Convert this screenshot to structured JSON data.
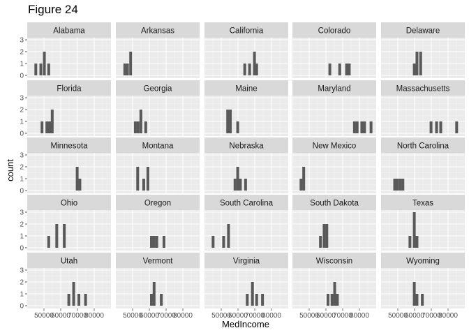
{
  "figure": {
    "title": "Figure 24"
  },
  "chart_data": {
    "type": "histogram",
    "xlabel": "MedIncome",
    "ylabel": "count",
    "xlim": [
      40000,
      90000
    ],
    "ylim": [
      0,
      3
    ],
    "x_ticks": [
      50000,
      60000,
      70000,
      80000
    ],
    "x_tick_labels": [
      "50000",
      "60000",
      "70000",
      "80000"
    ],
    "y_ticks": [
      0,
      1,
      2,
      3
    ],
    "y_tick_labels": [
      "0",
      "1",
      "2",
      "3"
    ],
    "grid": true,
    "bar_color": "#595959",
    "panel_bg": "#ebebeb",
    "strip_bg": "#d9d9d9",
    "bin_width": 1667,
    "panels": [
      {
        "name": "Alabama",
        "bins": [
          [
            44300,
            1
          ],
          [
            47300,
            1
          ],
          [
            49400,
            2
          ],
          [
            52000,
            1
          ]
        ]
      },
      {
        "name": "Arkansas",
        "bins": [
          [
            44500,
            1
          ],
          [
            46100,
            1
          ],
          [
            48000,
            2
          ]
        ]
      },
      {
        "name": "California",
        "bins": [
          [
            63200,
            1
          ],
          [
            66100,
            1
          ],
          [
            69000,
            2
          ],
          [
            70300,
            1
          ]
        ]
      },
      {
        "name": "Colorado",
        "bins": [
          [
            61500,
            1
          ],
          [
            67400,
            1
          ],
          [
            71500,
            1
          ],
          [
            73100,
            1
          ]
        ]
      },
      {
        "name": "Delaware",
        "bins": [
          [
            59000,
            1
          ],
          [
            60600,
            2
          ],
          [
            62800,
            2
          ]
        ]
      },
      {
        "name": "Florida",
        "bins": [
          [
            48000,
            1
          ],
          [
            50900,
            1
          ],
          [
            52500,
            1
          ],
          [
            54100,
            2
          ]
        ]
      },
      {
        "name": "Georgia",
        "bins": [
          [
            50800,
            1
          ],
          [
            52400,
            1
          ],
          [
            54100,
            2
          ],
          [
            57000,
            1
          ]
        ]
      },
      {
        "name": "Maine",
        "bins": [
          [
            53000,
            2
          ],
          [
            54600,
            2
          ],
          [
            59000,
            1
          ]
        ]
      },
      {
        "name": "Maryland",
        "bins": [
          [
            76200,
            1
          ],
          [
            77800,
            1
          ],
          [
            80600,
            1
          ],
          [
            82200,
            1
          ],
          [
            86100,
            1
          ]
        ]
      },
      {
        "name": "Massachusetts",
        "bins": [
          [
            69000,
            1
          ],
          [
            72300,
            1
          ],
          [
            74800,
            1
          ],
          [
            84300,
            1
          ]
        ]
      },
      {
        "name": "Minnesota",
        "bins": [
          [
            69000,
            2
          ],
          [
            70600,
            1
          ]
        ]
      },
      {
        "name": "Montana",
        "bins": [
          [
            52200,
            2
          ],
          [
            55800,
            1
          ],
          [
            58300,
            2
          ]
        ]
      },
      {
        "name": "Nebraska",
        "bins": [
          [
            57400,
            1
          ],
          [
            59000,
            2
          ],
          [
            60600,
            1
          ],
          [
            63700,
            1
          ]
        ]
      },
      {
        "name": "New Mexico",
        "bins": [
          [
            44300,
            1
          ],
          [
            45900,
            2
          ]
        ]
      },
      {
        "name": "North Carolina",
        "bins": [
          [
            47300,
            1
          ],
          [
            48900,
            1
          ],
          [
            50600,
            1
          ],
          [
            52200,
            1
          ]
        ]
      },
      {
        "name": "Ohio",
        "bins": [
          [
            52000,
            1
          ],
          [
            56800,
            2
          ],
          [
            61300,
            2
          ]
        ]
      },
      {
        "name": "Oregon",
        "bins": [
          [
            60400,
            1
          ],
          [
            62000,
            1
          ],
          [
            63600,
            1
          ],
          [
            67900,
            1
          ]
        ]
      },
      {
        "name": "South Carolina",
        "bins": [
          [
            44300,
            1
          ],
          [
            50600,
            1
          ],
          [
            53500,
            2
          ]
        ]
      },
      {
        "name": "South Dakota",
        "bins": [
          [
            55900,
            1
          ],
          [
            58100,
            2
          ],
          [
            59700,
            2
          ]
        ]
      },
      {
        "name": "Texas",
        "bins": [
          [
            56400,
            1
          ],
          [
            59000,
            3
          ],
          [
            60600,
            1
          ]
        ]
      },
      {
        "name": "Utah",
        "bins": [
          [
            64000,
            1
          ],
          [
            66900,
            2
          ],
          [
            70000,
            1
          ],
          [
            74000,
            1
          ]
        ]
      },
      {
        "name": "Vermont",
        "bins": [
          [
            60400,
            1
          ],
          [
            62000,
            2
          ],
          [
            66300,
            1
          ]
        ]
      },
      {
        "name": "Virginia",
        "bins": [
          [
            64700,
            1
          ],
          [
            67800,
            2
          ],
          [
            70300,
            1
          ],
          [
            73800,
            1
          ]
        ]
      },
      {
        "name": "Wisconsin",
        "bins": [
          [
            60400,
            1
          ],
          [
            62800,
            1
          ],
          [
            64400,
            2
          ],
          [
            66000,
            1
          ]
        ]
      },
      {
        "name": "Wyoming",
        "bins": [
          [
            59000,
            2
          ],
          [
            60600,
            1
          ],
          [
            63800,
            1
          ]
        ]
      }
    ]
  }
}
